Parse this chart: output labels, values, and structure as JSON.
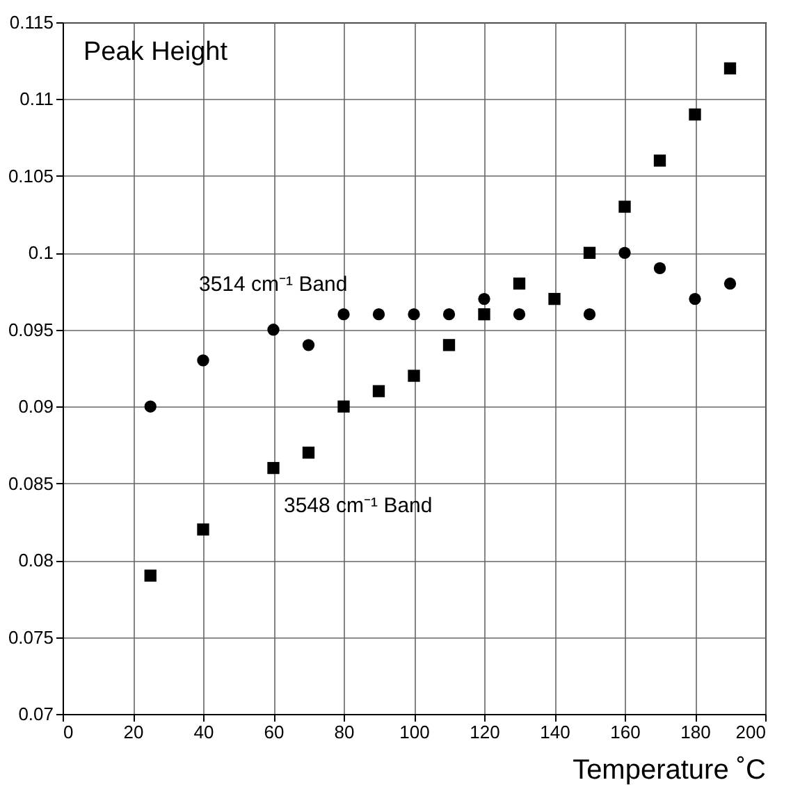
{
  "chart_data": {
    "type": "scatter",
    "xlabel": "Temperature ˚C",
    "x": [
      25,
      40,
      60,
      70,
      80,
      90,
      100,
      110,
      120,
      130,
      140,
      150,
      160,
      170,
      180,
      190
    ],
    "series": [
      {
        "color": "#000000",
        "marker": "circle",
        "values": [
          0.09,
          0.093,
          0.095,
          0.094,
          0.096,
          0.096,
          0.096,
          0.096,
          0.097,
          0.096,
          null,
          0.096,
          0.1,
          0.099,
          0.097,
          0.098
        ]
      },
      {
        "color": "#000000",
        "marker": "square",
        "values": [
          0.079,
          0.082,
          0.086,
          0.087,
          0.09,
          0.091,
          0.092,
          0.094,
          0.096,
          0.098,
          0.097,
          0.1,
          0.103,
          0.106,
          0.109,
          0.112
        ]
      }
    ],
    "xlim": [
      0,
      200
    ],
    "xticks": [
      0,
      20,
      40,
      60,
      80,
      100,
      120,
      140,
      160,
      180,
      200
    ],
    "ylim": [
      0.07,
      0.115
    ],
    "yticks": [
      0.07,
      0.075,
      0.08,
      0.085,
      0.09,
      0.095,
      0.1,
      0.105,
      0.11,
      0.115
    ],
    "grid": true,
    "annotations": [
      "Peak Height",
      "3514 cm⁻¹ Band",
      "3548 cm⁻¹ Band"
    ]
  }
}
